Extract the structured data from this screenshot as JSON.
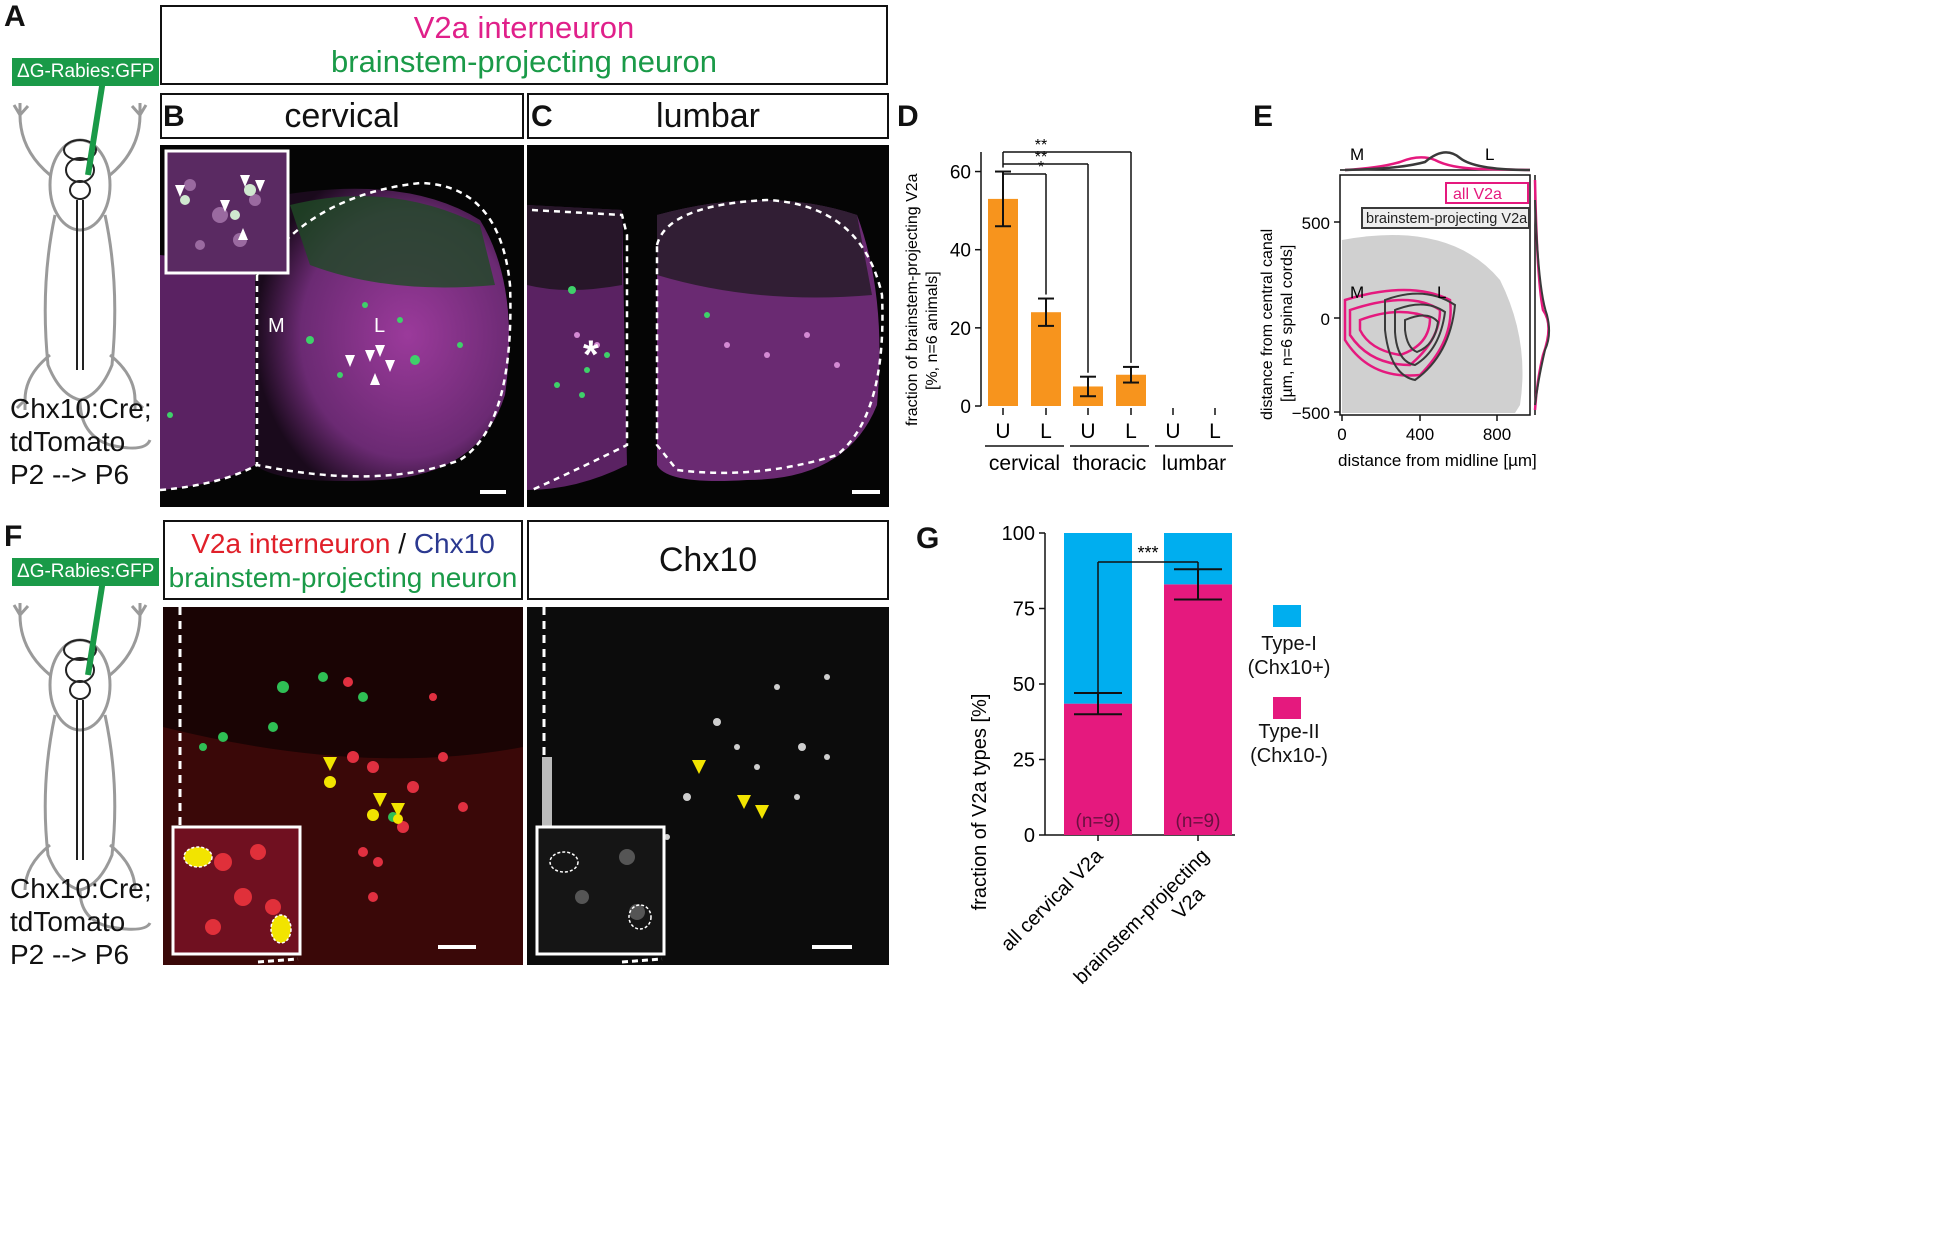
{
  "panels": {
    "A": "A",
    "B": "B",
    "C": "C",
    "D": "D",
    "E": "E",
    "F": "F",
    "G": "G"
  },
  "top_legend": {
    "line1": "V2a interneuron",
    "line2": "brainstem-projecting neuron"
  },
  "rabies_label": "ΔG-Rabies:GFP",
  "mouse_caption": {
    "line1": "Chx10:Cre;",
    "line2": "tdTomato",
    "line3": "P2 --> P6"
  },
  "panel_b": {
    "title": "cervical",
    "label_m": "M",
    "label_l": "L"
  },
  "panel_c": {
    "title": "lumbar",
    "asterisk": "*"
  },
  "panel_f_legend": {
    "part1": "V2a interneuron",
    "sep": " / ",
    "part2": "Chx10",
    "line2": "brainstem-projecting neuron"
  },
  "panel_f_chx10": {
    "title": "Chx10"
  },
  "colors": {
    "magenta": "#e0208a",
    "green": "#1a9a48",
    "orange": "#f7941d",
    "cyan": "#00aeef",
    "pink": "#e5197e",
    "red": "#e0202a",
    "navy": "#2b3990",
    "gray": "#d0d0d0",
    "dark": "#3a3a3a"
  },
  "chart_data": [
    {
      "type": "bar",
      "ylabel_line1": "fraction of brainstem-projecting V2a",
      "ylabel_line2": "[%, n=6 animals]",
      "ylim": [
        0,
        65
      ],
      "yticks": [
        "0",
        "20",
        "40",
        "60"
      ],
      "categories": [
        "U",
        "L",
        "U",
        "L",
        "U",
        "L"
      ],
      "groups": [
        "cervical",
        "thoracic",
        "lumbar"
      ],
      "values": [
        53,
        24,
        5,
        8,
        0,
        0
      ],
      "errors": [
        7,
        3.5,
        2.5,
        2,
        0,
        0
      ],
      "significance": [
        "*",
        "**",
        "**"
      ]
    },
    {
      "type": "scatter",
      "ylabel_line1": "distance from central canal",
      "ylabel_line2": "[µm, n=6 spinal cords]",
      "xlabel": "distance from midline [µm]",
      "xticks": [
        "0",
        "400",
        "800"
      ],
      "yticks": [
        "500",
        "0",
        "−500"
      ],
      "legend": [
        "all V2a",
        "brainstem-projecting V2a"
      ],
      "marginal_labels": {
        "m": "M",
        "l": "L"
      },
      "inner_labels": {
        "m": "M",
        "l": "L"
      }
    },
    {
      "type": "bar",
      "ylabel": "fraction of V2a types [%]",
      "ylim": [
        0,
        100
      ],
      "yticks": [
        "0",
        "25",
        "50",
        "75",
        "100"
      ],
      "categories": [
        "all cervical V2a",
        "brainstem-projecting V2a"
      ],
      "series": [
        {
          "name": "Type-II (Chx10-)",
          "values": [
            43.5,
            83
          ]
        },
        {
          "name": "Type-I (Chx10+)",
          "values": [
            56.5,
            17
          ]
        }
      ],
      "errors": [
        3.5,
        5
      ],
      "n_labels": [
        "(n=9)",
        "(n=9)"
      ],
      "significance": "***",
      "legend": [
        {
          "line1": "Type-I",
          "line2": "(Chx10+)"
        },
        {
          "line1": "Type-II",
          "line2": "(Chx10-)"
        }
      ]
    }
  ]
}
